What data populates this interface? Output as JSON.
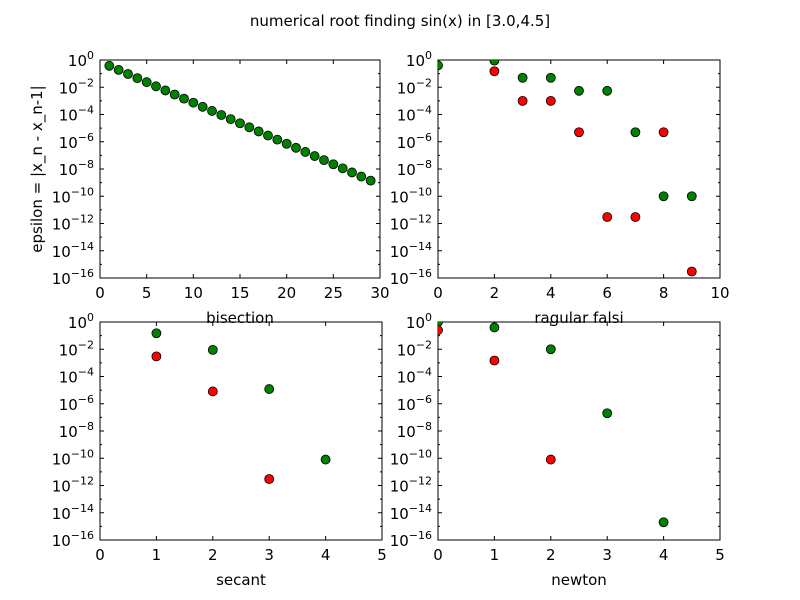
{
  "figure": {
    "title": "numerical root finding sin(x) in [3.0,4.5]"
  },
  "colors": {
    "green": "#008000",
    "red": "#ff0000",
    "edge": "#000000"
  },
  "chart_data": [
    {
      "type": "scatter",
      "xlabel": "bisection",
      "ylabel": "epsilon = |x_n - x_n-1|",
      "xlim": [
        0,
        30
      ],
      "xticks": [
        0,
        5,
        10,
        15,
        20,
        25,
        30
      ],
      "ylim_exp": [
        -16,
        0
      ],
      "yscale": "log",
      "ytick_exps": [
        -16,
        -14,
        -12,
        -10,
        -8,
        -6,
        -4,
        -2,
        0
      ],
      "series": [
        {
          "color": "green",
          "x": [
            1,
            2,
            3,
            4,
            5,
            6,
            7,
            8,
            9,
            10,
            11,
            12,
            13,
            14,
            15,
            16,
            17,
            18,
            19,
            20,
            21,
            22,
            23,
            24,
            25,
            26,
            27,
            28,
            29
          ],
          "y": [
            0.375,
            0.1875,
            0.09375,
            0.046875,
            0.0234375,
            0.01171875,
            0.005859375,
            0.0029296875,
            0.00146484375,
            0.000732421875,
            0.0003662109375,
            0.00018310546875,
            9.1552734375e-05,
            4.57763671875e-05,
            2.288818359375e-05,
            1.1444091796875e-05,
            5.7220458984375e-06,
            2.86102294921875e-06,
            1.430511474609375e-06,
            7.152557373046875e-07,
            3.5762786865234375e-07,
            1.7881393432617188e-07,
            8.940696716308594e-08,
            4.470348358154297e-08,
            2.2351741790771484e-08,
            1.1175870895385742e-08,
            5.587935447692871e-09,
            2.7939677238464355e-09,
            1.3969838619232178e-09
          ]
        }
      ]
    },
    {
      "type": "scatter",
      "xlabel": "ragular falsi",
      "ylabel": "",
      "xlim": [
        0,
        10
      ],
      "xticks": [
        0,
        2,
        4,
        6,
        8,
        10
      ],
      "ylim_exp": [
        -16,
        0
      ],
      "yscale": "log",
      "ytick_exps": [
        -16,
        -14,
        -12,
        -10,
        -8,
        -6,
        -4,
        -2,
        0
      ],
      "series": [
        {
          "color": "green",
          "x": [
            0,
            2,
            3,
            4,
            5,
            6,
            7,
            8,
            9
          ],
          "y": [
            0.4,
            0.9,
            0.05,
            0.05,
            0.0055,
            0.0055,
            5e-06,
            1e-10,
            1e-10
          ]
        },
        {
          "color": "red",
          "x": [
            2,
            3,
            4,
            5,
            6,
            7,
            8,
            9
          ],
          "y": [
            0.15,
            0.001,
            0.001,
            5e-06,
            3e-12,
            3e-12,
            5e-06,
            3e-16
          ]
        }
      ]
    },
    {
      "type": "scatter",
      "xlabel": "secant",
      "ylabel": "",
      "xlim": [
        0,
        5
      ],
      "xticks": [
        0,
        1,
        2,
        3,
        4,
        5
      ],
      "ylim_exp": [
        -16,
        0
      ],
      "yscale": "log",
      "ytick_exps": [
        -16,
        -14,
        -12,
        -10,
        -8,
        -6,
        -4,
        -2,
        0
      ],
      "series": [
        {
          "color": "green",
          "x": [
            1,
            2,
            3,
            4
          ],
          "y": [
            0.15,
            0.009,
            1.2e-05,
            8e-11
          ]
        },
        {
          "color": "red",
          "x": [
            1,
            2,
            3
          ],
          "y": [
            0.003,
            8e-06,
            3e-12
          ]
        }
      ]
    },
    {
      "type": "scatter",
      "xlabel": "newton",
      "ylabel": "",
      "xlim": [
        0,
        5
      ],
      "xticks": [
        0,
        1,
        2,
        3,
        4,
        5
      ],
      "ylim_exp": [
        -16,
        0
      ],
      "yscale": "log",
      "ytick_exps": [
        -16,
        -14,
        -12,
        -10,
        -8,
        -6,
        -4,
        -2,
        0
      ],
      "series": [
        {
          "color": "green",
          "x": [
            0,
            1,
            2,
            3,
            4
          ],
          "y": [
            1,
            0.4,
            0.01,
            2e-07,
            2e-15
          ]
        },
        {
          "color": "red",
          "x": [
            0,
            1,
            2
          ],
          "y": [
            0.25,
            0.0015,
            8e-11
          ]
        }
      ]
    }
  ]
}
